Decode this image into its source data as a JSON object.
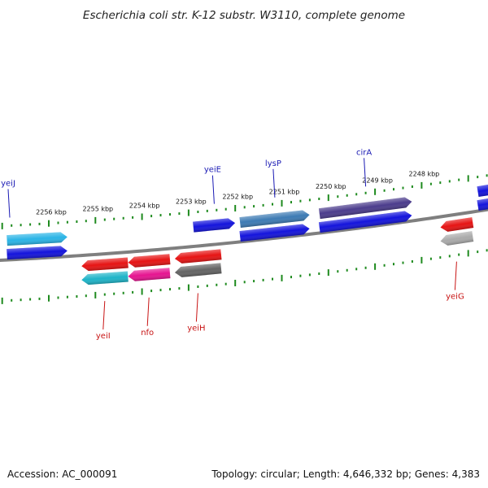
{
  "title": "Escherichia coli str. K-12 substr. W3110, complete genome",
  "footer": {
    "accession": "Accession: AC_000091",
    "summary": "Topology: circular; Length: 4,646,332 bp; Genes: 4,383"
  },
  "colors": {
    "backbone": "#7f7f7f",
    "ticks": "#1e8a1e",
    "forward_label": "#1a1ab4",
    "reverse_label": "#c81414"
  },
  "chart_data": {
    "type": "linear-genome-map",
    "tick_unit": "kbp",
    "tick_labels": [
      {
        "kbp": 2256,
        "label": "2256 kbp"
      },
      {
        "kbp": 2255,
        "label": "2255 kbp"
      },
      {
        "kbp": 2254,
        "label": "2254 kbp"
      },
      {
        "kbp": 2253,
        "label": "2253 kbp"
      },
      {
        "kbp": 2252,
        "label": "2252 kbp"
      },
      {
        "kbp": 2251,
        "label": "2251 kbp"
      },
      {
        "kbp": 2250,
        "label": "2250 kbp"
      },
      {
        "kbp": 2249,
        "label": "2249 kbp"
      },
      {
        "kbp": 2248,
        "label": "2248 kbp"
      }
    ],
    "genes": [
      {
        "name": "yeiJ",
        "strand": "+",
        "labeled": true,
        "start_kbp": 2256.9,
        "end_kbp": 2255.6,
        "color": "#2ab4e6"
      },
      {
        "name": "",
        "strand": "+",
        "labeled": false,
        "start_kbp": 2256.9,
        "end_kbp": 2255.6,
        "color": "#1414dc"
      },
      {
        "name": "yeiE",
        "strand": "+",
        "labeled": true,
        "start_kbp": 2252.9,
        "end_kbp": 2252.0,
        "color": "#1414dc"
      },
      {
        "name": "lysP",
        "strand": "+",
        "labeled": true,
        "start_kbp": 2251.9,
        "end_kbp": 2250.4,
        "color": "#3d7bb4"
      },
      {
        "name": "",
        "strand": "+",
        "labeled": false,
        "start_kbp": 2251.9,
        "end_kbp": 2250.4,
        "color": "#1414dc"
      },
      {
        "name": "cirA",
        "strand": "+",
        "labeled": true,
        "start_kbp": 2250.2,
        "end_kbp": 2248.2,
        "color": "#4b3c8c"
      },
      {
        "name": "",
        "strand": "+",
        "labeled": false,
        "start_kbp": 2250.2,
        "end_kbp": 2248.2,
        "color": "#1414dc"
      },
      {
        "name": "",
        "strand": "+",
        "labeled": false,
        "start_kbp": 2246.8,
        "end_kbp": 2246.0,
        "color": "#1414dc"
      },
      {
        "name": "",
        "strand": "+",
        "labeled": false,
        "start_kbp": 2246.8,
        "end_kbp": 2246.0,
        "color": "#1414dc"
      },
      {
        "name": "yeiI",
        "strand": "-",
        "labeled": true,
        "start_kbp": 2255.3,
        "end_kbp": 2254.3,
        "color": "#e61414"
      },
      {
        "name": "",
        "strand": "-",
        "labeled": false,
        "start_kbp": 2255.3,
        "end_kbp": 2254.3,
        "color": "#1eb4c8"
      },
      {
        "name": "nfo",
        "strand": "-",
        "labeled": true,
        "start_kbp": 2254.3,
        "end_kbp": 2253.4,
        "color": "#e61414"
      },
      {
        "name": "",
        "strand": "-",
        "labeled": false,
        "start_kbp": 2254.3,
        "end_kbp": 2253.4,
        "color": "#e61490"
      },
      {
        "name": "yeiH",
        "strand": "-",
        "labeled": true,
        "start_kbp": 2253.3,
        "end_kbp": 2252.3,
        "color": "#e61414"
      },
      {
        "name": "",
        "strand": "-",
        "labeled": false,
        "start_kbp": 2253.3,
        "end_kbp": 2252.3,
        "color": "#646464"
      },
      {
        "name": "yeiG",
        "strand": "-",
        "labeled": true,
        "start_kbp": 2247.6,
        "end_kbp": 2246.9,
        "color": "#e61414"
      },
      {
        "name": "",
        "strand": "-",
        "labeled": false,
        "start_kbp": 2247.6,
        "end_kbp": 2246.9,
        "color": "#aaaaaa"
      }
    ]
  }
}
